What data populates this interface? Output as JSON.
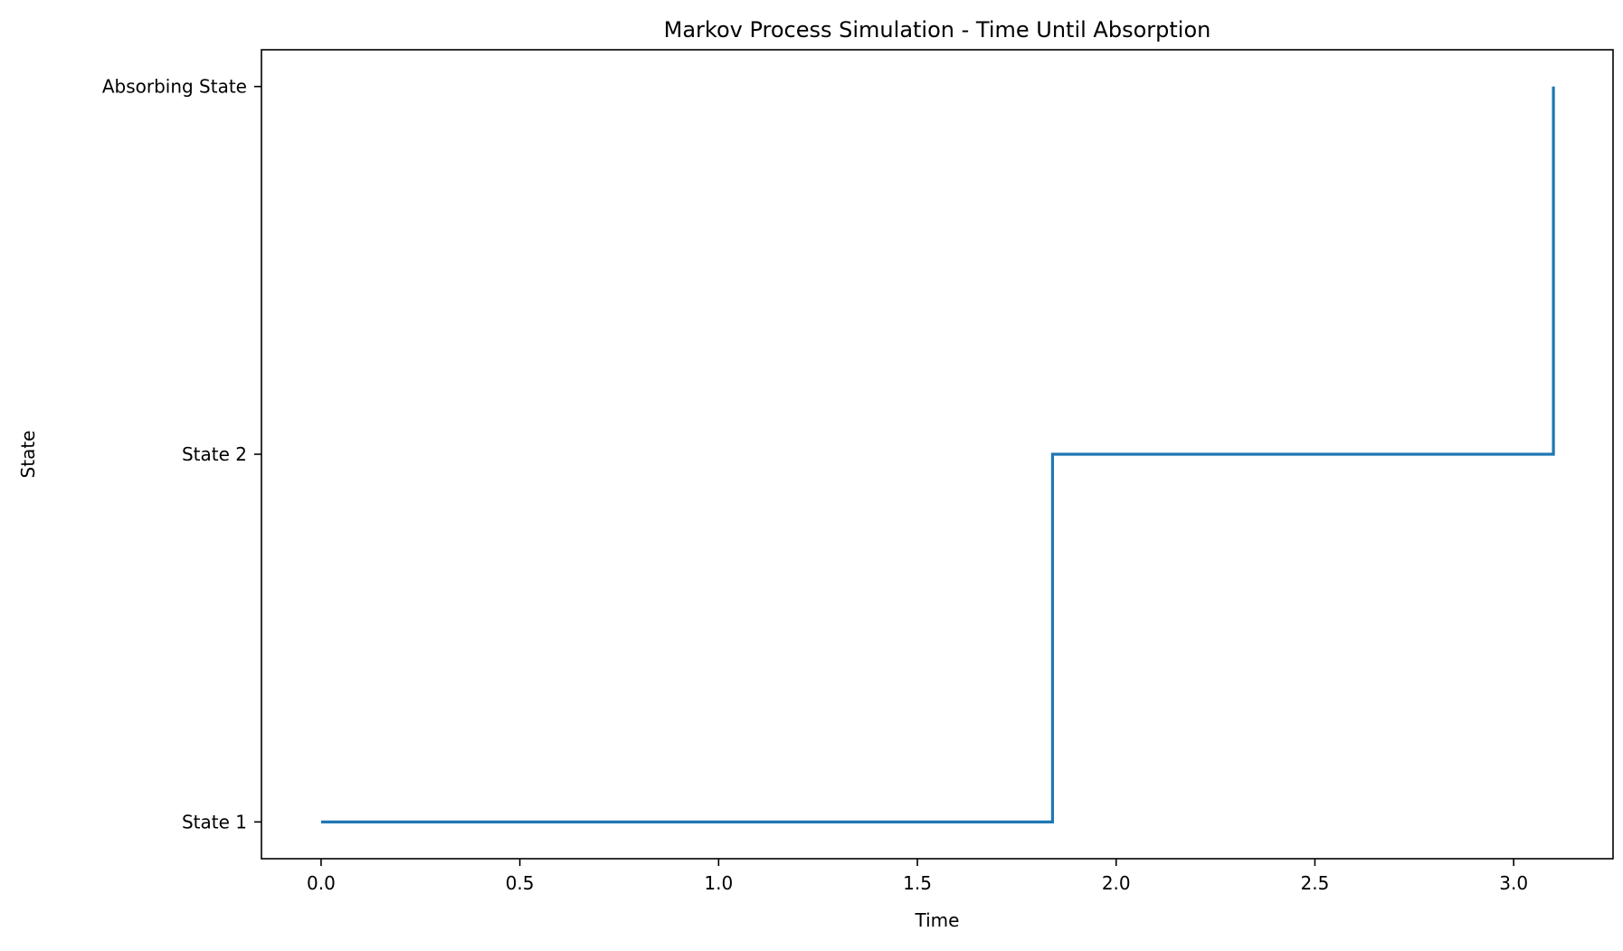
{
  "chart_data": {
    "type": "line",
    "title": "Markov Process Simulation - Time Until Absorption",
    "xlabel": "Time",
    "ylabel": "State",
    "xlim": [
      -0.15,
      3.25
    ],
    "ylim": [
      -0.1,
      2.1
    ],
    "xticks": [
      0.0,
      0.5,
      1.0,
      1.5,
      2.0,
      2.5,
      3.0
    ],
    "xtick_labels": [
      "0.0",
      "0.5",
      "1.0",
      "1.5",
      "2.0",
      "2.5",
      "3.0"
    ],
    "yticks": [
      0,
      1,
      2
    ],
    "ytick_labels": [
      "State 1",
      "State 2",
      "Absorbing State"
    ],
    "grid": false,
    "drawstyle": "steps-post",
    "series": [
      {
        "color": "#1f77b4",
        "x": [
          0.0,
          1.84,
          3.1
        ],
        "y": [
          0,
          1,
          2
        ]
      }
    ]
  }
}
